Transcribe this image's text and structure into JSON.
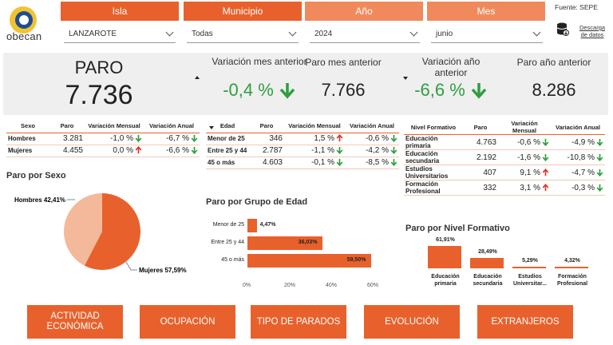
{
  "header": {
    "logo_text": "obecan",
    "source": "Fuente: SEPE",
    "download": "Descarga de datos",
    "filters": [
      {
        "label": "Isla",
        "value": "LANZAROTE"
      },
      {
        "label": "Municipio",
        "value": "Todas"
      },
      {
        "label": "Año",
        "value": "2024"
      },
      {
        "label": "Mes",
        "value": "junio"
      }
    ]
  },
  "summary": {
    "paro_label": "PARO",
    "paro_value": "7.736",
    "var_mes_label": "Variación mes anterior",
    "var_mes_value": "-0,4 %",
    "paro_mes_label": "Paro mes anterior",
    "paro_mes_value": "7.766",
    "var_ano_label": "Variación año anterior",
    "var_ano_value": "-6,6 %",
    "paro_ano_label": "Paro año anterior",
    "paro_ano_value": "8.286"
  },
  "colors": {
    "accent": "#e8612c",
    "accent_light": "#f08a5d",
    "pie_light": "#f4b89a",
    "up": "#d9342b",
    "down": "#2e9e3e"
  },
  "table_sexo": {
    "headers": [
      "Sexo",
      "Paro",
      "Variación Mensual",
      "Variación Anual"
    ],
    "rows": [
      {
        "label": "Hombres",
        "paro": "3.281",
        "vm": "-1,0 %",
        "vm_dir": "down",
        "va": "-6,7 %",
        "va_dir": "down"
      },
      {
        "label": "Mujeres",
        "paro": "4.455",
        "vm": "0,0 %",
        "vm_dir": "up",
        "va": "-6,6 %",
        "va_dir": "down"
      }
    ]
  },
  "table_edad": {
    "headers": [
      "Edad",
      "Paro",
      "Variación Mensual",
      "Variación Anual"
    ],
    "rows": [
      {
        "label": "Menor de 25",
        "paro": "346",
        "vm": "1,5 %",
        "vm_dir": "up",
        "va": "-0,6 %",
        "va_dir": "down"
      },
      {
        "label": "Entre 25 y 44",
        "paro": "2.787",
        "vm": "-1,1 %",
        "vm_dir": "down",
        "va": "-4,2 %",
        "va_dir": "down"
      },
      {
        "label": "45 o más",
        "paro": "4.603",
        "vm": "-0,1 %",
        "vm_dir": "down",
        "va": "-8,5 %",
        "va_dir": "down"
      }
    ]
  },
  "table_nivel": {
    "headers": [
      "Nivel Formativo",
      "Paro",
      "Variación Mensual",
      "Variación Anual"
    ],
    "rows": [
      {
        "label": "Educación primaria",
        "paro": "4.763",
        "vm": "-0,6 %",
        "vm_dir": "down",
        "va": "-4,9 %",
        "va_dir": "down"
      },
      {
        "label": "Educación secundaria",
        "paro": "2.192",
        "vm": "-1,6 %",
        "vm_dir": "down",
        "va": "-10,8 %",
        "va_dir": "down"
      },
      {
        "label": "Estudios Universitarios",
        "paro": "407",
        "vm": "9,1 %",
        "vm_dir": "up",
        "va": "-4,7 %",
        "va_dir": "down"
      },
      {
        "label": "Formación Profesional",
        "paro": "332",
        "vm": "3,1 %",
        "vm_dir": "up",
        "va": "-0,3 %",
        "va_dir": "down"
      }
    ]
  },
  "chart_data": [
    {
      "type": "pie",
      "title": "Paro por Sexo",
      "categories": [
        "Hombres",
        "Mujeres"
      ],
      "values": [
        42.41,
        57.59
      ],
      "labels": [
        "Hombres 42,41%",
        "Mujeres 57,59%"
      ]
    },
    {
      "type": "bar",
      "orientation": "horizontal",
      "title": "Paro por Grupo de Edad",
      "categories": [
        "Menor de 25",
        "Entre 25 y 44",
        "45 o más"
      ],
      "values": [
        4.47,
        36.03,
        59.5
      ],
      "labels": [
        "4,47%",
        "36,03%",
        "59,50%"
      ],
      "ticks": [
        "0%",
        "20%",
        "40%",
        "60%"
      ],
      "xlim": [
        0,
        60
      ]
    },
    {
      "type": "bar",
      "title": "Paro por Nivel Formativo",
      "categories": [
        "Educación primaria",
        "Educación secundaria",
        "Estudios Universitar...",
        "Formación Profesional"
      ],
      "values": [
        61.91,
        28.49,
        5.29,
        4.32
      ],
      "labels": [
        "61,91%",
        "28,49%",
        "5,29%",
        "4,32%"
      ]
    }
  ],
  "nav": [
    "ACTIVIDAD ECONÓMICA",
    "OCUPACIÓN",
    "TIPO DE PARADOS",
    "EVOLUCIÓN",
    "EXTRANJEROS"
  ]
}
